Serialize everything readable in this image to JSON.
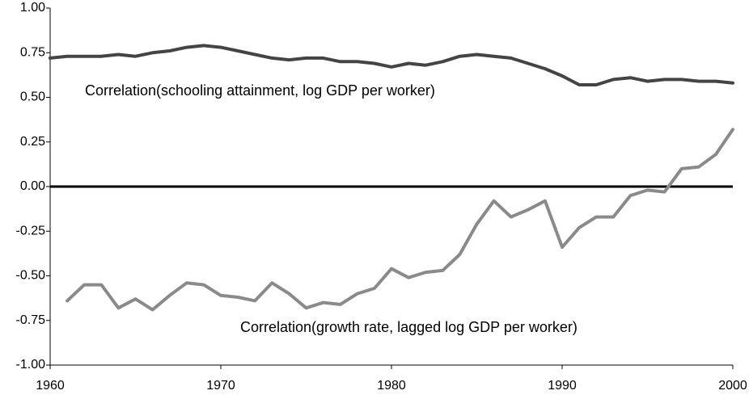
{
  "chart_data": {
    "type": "line",
    "annotations": [
      "Correlation(schooling attainment, log GDP per worker)",
      "Correlation(growth rate, lagged log GDP per worker)"
    ],
    "x": [
      1960,
      1961,
      1962,
      1963,
      1964,
      1965,
      1966,
      1967,
      1968,
      1969,
      1970,
      1971,
      1972,
      1973,
      1974,
      1975,
      1976,
      1977,
      1978,
      1979,
      1980,
      1981,
      1982,
      1983,
      1984,
      1985,
      1986,
      1987,
      1988,
      1989,
      1990,
      1991,
      1992,
      1993,
      1994,
      1995,
      1996,
      1997,
      1998,
      1999,
      2000
    ],
    "series": [
      {
        "color": "#444444",
        "values": [
          0.72,
          0.73,
          0.73,
          0.73,
          0.74,
          0.73,
          0.75,
          0.76,
          0.78,
          0.79,
          0.78,
          0.76,
          0.74,
          0.72,
          0.71,
          0.72,
          0.72,
          0.7,
          0.7,
          0.69,
          0.67,
          0.69,
          0.68,
          0.7,
          0.73,
          0.74,
          0.73,
          0.72,
          0.69,
          0.66,
          0.62,
          0.57,
          0.57,
          0.6,
          0.61,
          0.59,
          0.6,
          0.6,
          0.59,
          0.59,
          0.58
        ]
      },
      {
        "color": "#8a8a8a",
        "values": [
          null,
          -0.64,
          -0.55,
          -0.55,
          -0.68,
          -0.63,
          -0.69,
          -0.61,
          -0.54,
          -0.55,
          -0.61,
          -0.62,
          -0.64,
          -0.54,
          -0.6,
          -0.68,
          -0.65,
          -0.66,
          -0.6,
          -0.57,
          -0.46,
          -0.51,
          -0.48,
          -0.47,
          -0.38,
          -0.21,
          -0.08,
          -0.17,
          -0.13,
          -0.08,
          -0.34,
          -0.23,
          -0.17,
          -0.17,
          -0.05,
          -0.02,
          -0.03,
          0.1,
          0.11,
          0.18,
          0.32
        ]
      }
    ],
    "xlim": [
      1960,
      2000
    ],
    "xticks": [
      1960,
      1970,
      1980,
      1990,
      2000
    ],
    "ylim": [
      -1,
      1
    ],
    "yticks": [
      {
        "value": -1,
        "label": "-1.00"
      },
      {
        "value": -0.75,
        "label": "-0.75"
      },
      {
        "value": -0.5,
        "label": "-0.50"
      },
      {
        "value": -0.25,
        "label": "-0.25"
      },
      {
        "value": 0,
        "label": "0.00"
      },
      {
        "value": 0.25,
        "label": "0.25"
      },
      {
        "value": 0.5,
        "label": "0.50"
      },
      {
        "value": 0.75,
        "label": "0.75"
      },
      {
        "value": 1,
        "label": "1.00"
      }
    ],
    "zero_line": true,
    "grid": false
  }
}
